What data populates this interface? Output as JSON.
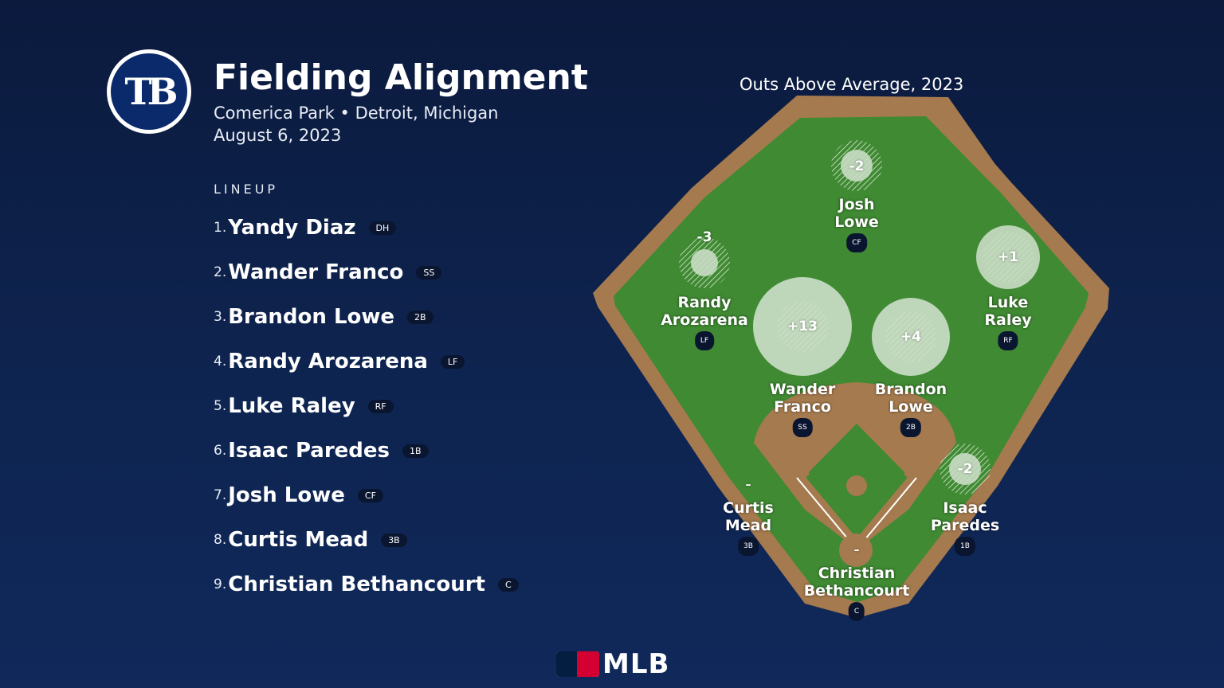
{
  "header": {
    "team_logo_text": "TB",
    "title": "Fielding Alignment",
    "venue": "Comerica Park • Detroit, Michigan",
    "date": "August 6, 2023"
  },
  "lineup": {
    "heading": "LINEUP",
    "items": [
      {
        "num": "1.",
        "name": "Yandy Diaz",
        "pos": "DH"
      },
      {
        "num": "2.",
        "name": "Wander Franco",
        "pos": "SS"
      },
      {
        "num": "3.",
        "name": "Brandon Lowe",
        "pos": "2B"
      },
      {
        "num": "4.",
        "name": "Randy Arozarena",
        "pos": "LF"
      },
      {
        "num": "5.",
        "name": "Luke Raley",
        "pos": "RF"
      },
      {
        "num": "6.",
        "name": "Isaac Paredes",
        "pos": "1B"
      },
      {
        "num": "7.",
        "name": "Josh Lowe",
        "pos": "CF"
      },
      {
        "num": "8.",
        "name": "Curtis Mead",
        "pos": "3B"
      },
      {
        "num": "9.",
        "name": "Christian Bethancourt",
        "pos": "C"
      }
    ]
  },
  "field": {
    "title": "Outs Above Average, 2023",
    "players": [
      {
        "first": "Josh",
        "last": "Lowe",
        "pos": "CF",
        "oaa": "-2"
      },
      {
        "first": "Randy",
        "last": "Arozarena",
        "pos": "LF",
        "oaa": "-3"
      },
      {
        "first": "Luke",
        "last": "Raley",
        "pos": "RF",
        "oaa": "+1"
      },
      {
        "first": "Wander",
        "last": "Franco",
        "pos": "SS",
        "oaa": "+13"
      },
      {
        "first": "Brandon",
        "last": "Lowe",
        "pos": "2B",
        "oaa": "+4"
      },
      {
        "first": "Isaac",
        "last": "Paredes",
        "pos": "1B",
        "oaa": "-2"
      },
      {
        "first": "Curtis",
        "last": "Mead",
        "pos": "3B",
        "oaa": "–"
      },
      {
        "first": "Christian",
        "last": "Bethancourt",
        "pos": "C",
        "oaa": "–"
      }
    ]
  },
  "footer": {
    "brand": "MLB"
  },
  "colors": {
    "background": "#0e2450",
    "grass": "#3f8a32",
    "dirt": "#a57a4e",
    "bubble": "#c9dcc4"
  }
}
